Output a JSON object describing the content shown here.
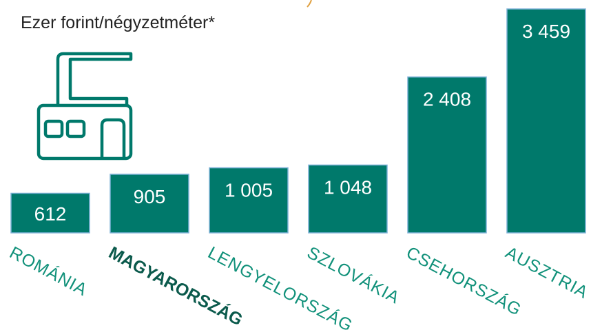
{
  "chart_data": {
    "type": "bar",
    "title": "Ezer forint/négyzetméter*",
    "categories": [
      "ROMÁNIA",
      "MAGYARORSZÁG",
      "LENGYELORSZÁG",
      "SZLOVÁKIA",
      "CSEHORSZÁG",
      "AUSZTRIA"
    ],
    "values": [
      612,
      905,
      1005,
      1048,
      2408,
      3459
    ],
    "value_labels": [
      "612",
      "905",
      "1 005",
      "1 048",
      "2 408",
      "3 459"
    ],
    "color": "#00796b",
    "highlight_category": "MAGYARORSZÁG"
  }
}
